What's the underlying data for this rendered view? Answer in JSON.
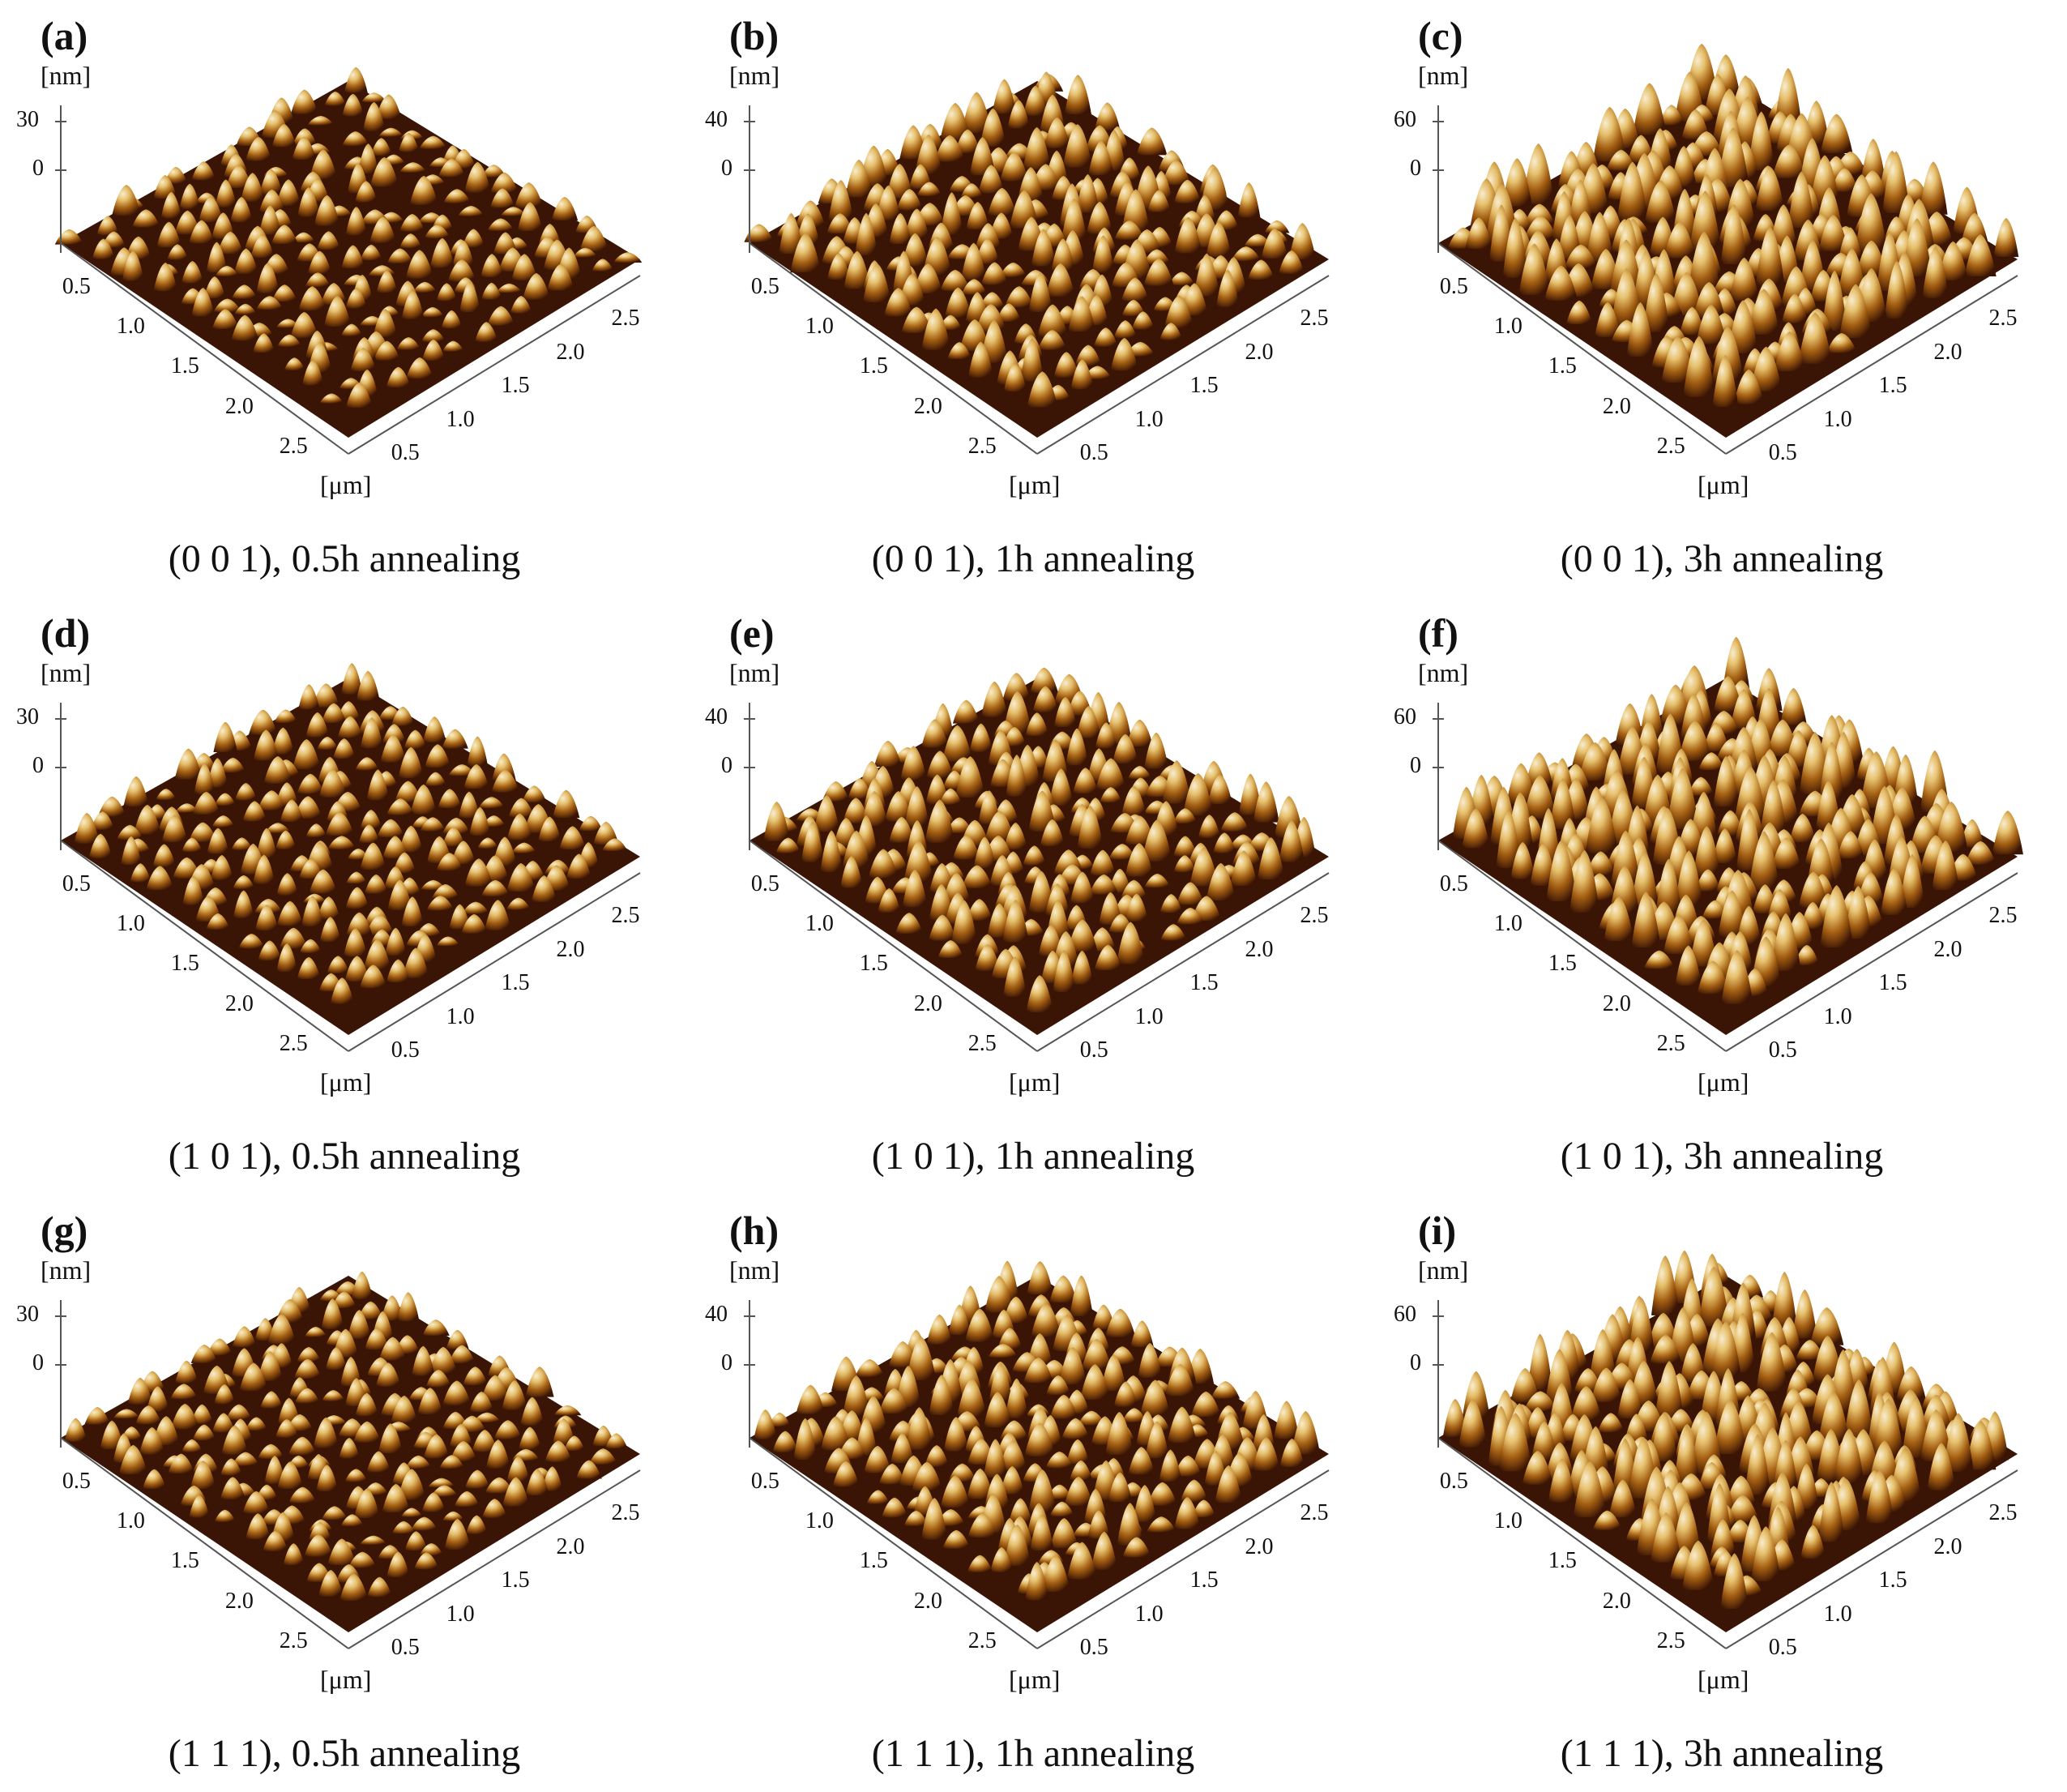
{
  "figure": {
    "height_unit": "[nm]",
    "lateral_unit": "[μm]",
    "lateral_ticks": [
      "0.5",
      "1.0",
      "1.5",
      "2.0",
      "2.5"
    ],
    "colors": {
      "dark": "#3a1404",
      "mid": "#a45f12",
      "light": "#e6c06c",
      "highlight": "#f8ecd0"
    },
    "panels": [
      {
        "label": "(a)",
        "caption": "(0 0 1), 0.5h annealing",
        "z_top": "30",
        "z_zero": "0",
        "relief": 0.5
      },
      {
        "label": "(b)",
        "caption": "(0 0 1), 1h annealing",
        "z_top": "40",
        "z_zero": "0",
        "relief": 0.7
      },
      {
        "label": "(c)",
        "caption": "(0 0 1), 3h annealing",
        "z_top": "60",
        "z_zero": "0",
        "relief": 1.0
      },
      {
        "label": "(d)",
        "caption": "(1 0 1), 0.5h annealing",
        "z_top": "30",
        "z_zero": "0",
        "relief": 0.5
      },
      {
        "label": "(e)",
        "caption": "(1 0 1), 1h annealing",
        "z_top": "40",
        "z_zero": "0",
        "relief": 0.7
      },
      {
        "label": "(f)",
        "caption": "(1 0 1), 3h annealing",
        "z_top": "60",
        "z_zero": "0",
        "relief": 1.0
      },
      {
        "label": "(g)",
        "caption": "(1 1 1), 0.5h annealing",
        "z_top": "30",
        "z_zero": "0",
        "relief": 0.5
      },
      {
        "label": "(h)",
        "caption": "(1 1 1), 1h annealing",
        "z_top": "40",
        "z_zero": "0",
        "relief": 0.7
      },
      {
        "label": "(i)",
        "caption": "(1 1 1), 3h annealing",
        "z_top": "60",
        "z_zero": "0",
        "relief": 1.0
      }
    ]
  }
}
